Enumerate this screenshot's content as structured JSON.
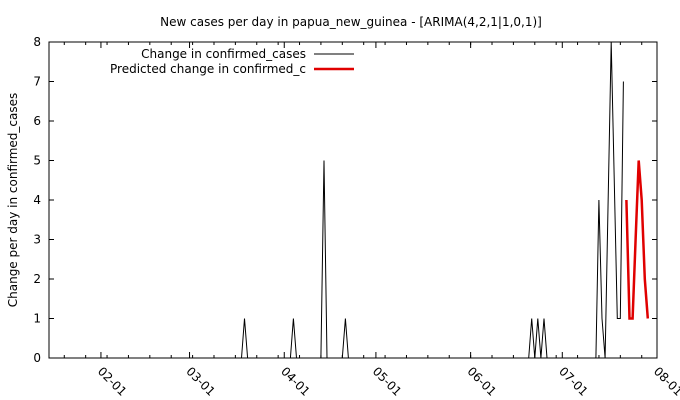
{
  "chart_data": {
    "type": "line",
    "title": "New cases per day in papua_new_guinea -  [ARIMA(4,2,1|1,0,1)]",
    "xlabel": "",
    "ylabel": "Change per day in confirmed_cases",
    "xlim": [
      "2020-01-15",
      "2020-08-01"
    ],
    "ylim": [
      0,
      8
    ],
    "yticks": [
      0,
      1,
      2,
      3,
      4,
      5,
      6,
      7,
      8
    ],
    "xticks": [
      {
        "date": "2020-02-01",
        "label": "02-01"
      },
      {
        "date": "2020-03-01",
        "label": "03-01"
      },
      {
        "date": "2020-04-01",
        "label": "04-01"
      },
      {
        "date": "2020-05-01",
        "label": "05-01"
      },
      {
        "date": "2020-06-01",
        "label": "06-01"
      },
      {
        "date": "2020-07-01",
        "label": "07-01"
      },
      {
        "date": "2020-08-01",
        "label": "08-01"
      }
    ],
    "legend_position": "top-left",
    "grid": false,
    "series": [
      {
        "name": "Change in confirmed_cases",
        "color": "#000000",
        "points": [
          [
            "2020-03-17",
            0
          ],
          [
            "2020-03-18",
            0
          ],
          [
            "2020-03-19",
            1
          ],
          [
            "2020-03-20",
            0
          ],
          [
            "2020-04-03",
            0
          ],
          [
            "2020-04-04",
            1
          ],
          [
            "2020-04-05",
            0
          ],
          [
            "2020-04-13",
            0
          ],
          [
            "2020-04-14",
            5
          ],
          [
            "2020-04-15",
            0
          ],
          [
            "2020-04-20",
            0
          ],
          [
            "2020-04-21",
            1
          ],
          [
            "2020-04-22",
            0
          ],
          [
            "2020-06-20",
            0
          ],
          [
            "2020-06-21",
            1
          ],
          [
            "2020-06-22",
            0
          ],
          [
            "2020-06-23",
            1
          ],
          [
            "2020-06-24",
            0
          ],
          [
            "2020-06-25",
            1
          ],
          [
            "2020-06-26",
            0
          ],
          [
            "2020-07-12",
            0
          ],
          [
            "2020-07-13",
            4
          ],
          [
            "2020-07-14",
            1
          ],
          [
            "2020-07-15",
            0
          ],
          [
            "2020-07-17",
            8
          ],
          [
            "2020-07-19",
            1
          ],
          [
            "2020-07-20",
            1
          ],
          [
            "2020-07-21",
            7
          ]
        ]
      },
      {
        "name": "Predicted change in confirmed_c",
        "color": "#e00000",
        "points": [
          [
            "2020-07-22",
            4
          ],
          [
            "2020-07-23",
            1
          ],
          [
            "2020-07-24",
            1
          ],
          [
            "2020-07-25",
            3
          ],
          [
            "2020-07-26",
            5
          ],
          [
            "2020-07-27",
            4
          ],
          [
            "2020-07-28",
            2
          ],
          [
            "2020-07-29",
            1
          ]
        ]
      }
    ]
  }
}
